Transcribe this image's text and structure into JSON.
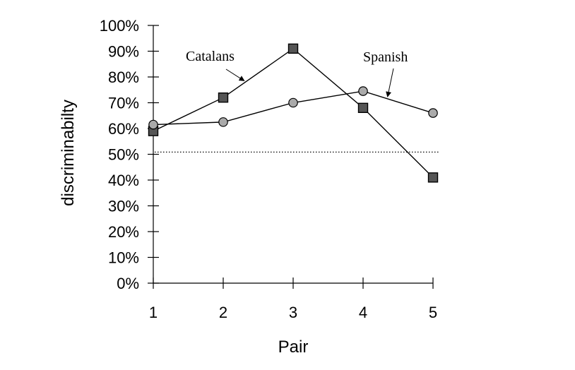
{
  "chart_data": {
    "type": "line",
    "x": [
      1,
      2,
      3,
      4,
      5
    ],
    "x_tick_labels": [
      "1",
      "2",
      "3",
      "4",
      "5"
    ],
    "y_tick_labels": [
      "0%",
      "10%",
      "20%",
      "30%",
      "40%",
      "50%",
      "60%",
      "70%",
      "80%",
      "90%",
      "100%"
    ],
    "ylim": [
      0,
      100
    ],
    "xlabel": "Pair",
    "ylabel": "discriminabilty",
    "grid": false,
    "reference_line": {
      "y": 51,
      "style": "dotted"
    },
    "series": [
      {
        "name": "Catalans",
        "marker": "square",
        "color": "#555555",
        "values": [
          59,
          72,
          91,
          68,
          41
        ]
      },
      {
        "name": "Spanish",
        "marker": "circle",
        "color": "#aaaaaa",
        "values": [
          61.5,
          62.5,
          70,
          74.5,
          66
        ]
      }
    ],
    "annotations": [
      {
        "text": "Catalans",
        "series": "Catalans",
        "points_to_x": 2.3
      },
      {
        "text": "Spanish",
        "series": "Spanish",
        "points_to_x": 4.35
      }
    ]
  }
}
